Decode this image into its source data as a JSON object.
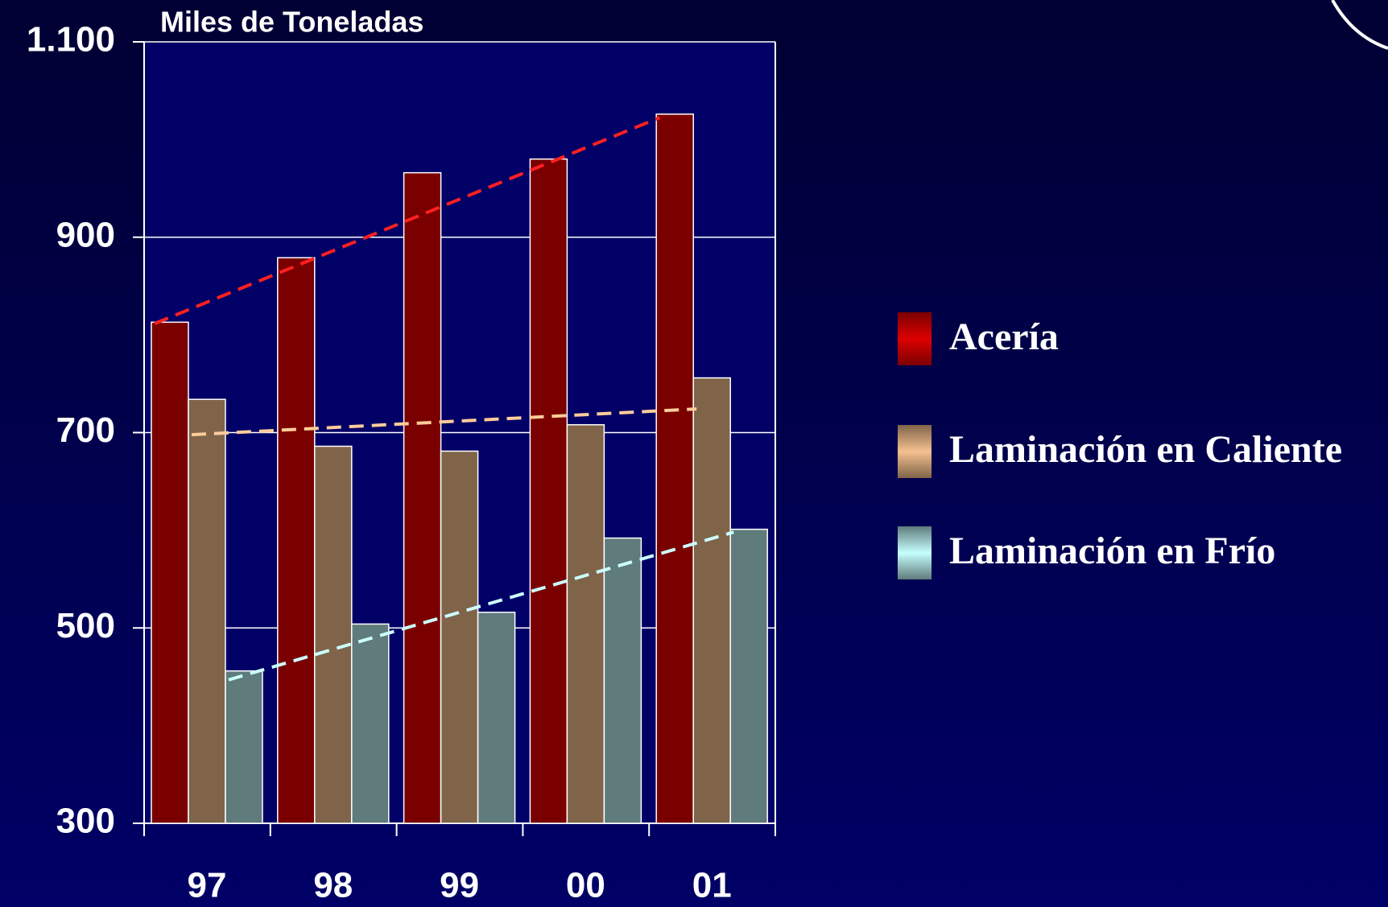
{
  "chart_data": {
    "type": "bar",
    "title": "Miles de Toneladas",
    "categories": [
      "97",
      "98",
      "99",
      "00",
      "01"
    ],
    "series": [
      {
        "name": "Acería",
        "color": "#7a0000",
        "legend_color": "#dd0000",
        "trend_color": "#ff2020",
        "values": [
          813,
          879,
          966,
          980,
          1026
        ]
      },
      {
        "name": "Laminación en Caliente",
        "color": "#7f6449",
        "legend_color": "#f5c08f",
        "trend_color": "#ffcc99",
        "values": [
          734,
          686,
          681,
          708,
          756
        ]
      },
      {
        "name": "Laminación en Frío",
        "color": "#5f7b7b",
        "legend_color": "#c6ffff",
        "trend_color": "#ccffff",
        "values": [
          456,
          504,
          516,
          592,
          601
        ]
      }
    ],
    "ylim": [
      300,
      1100
    ],
    "yticks": [
      300,
      500,
      700,
      900,
      {
        "value": 1100,
        "label": "1.100"
      }
    ],
    "grid": true,
    "trendline": true,
    "legend": "right"
  }
}
